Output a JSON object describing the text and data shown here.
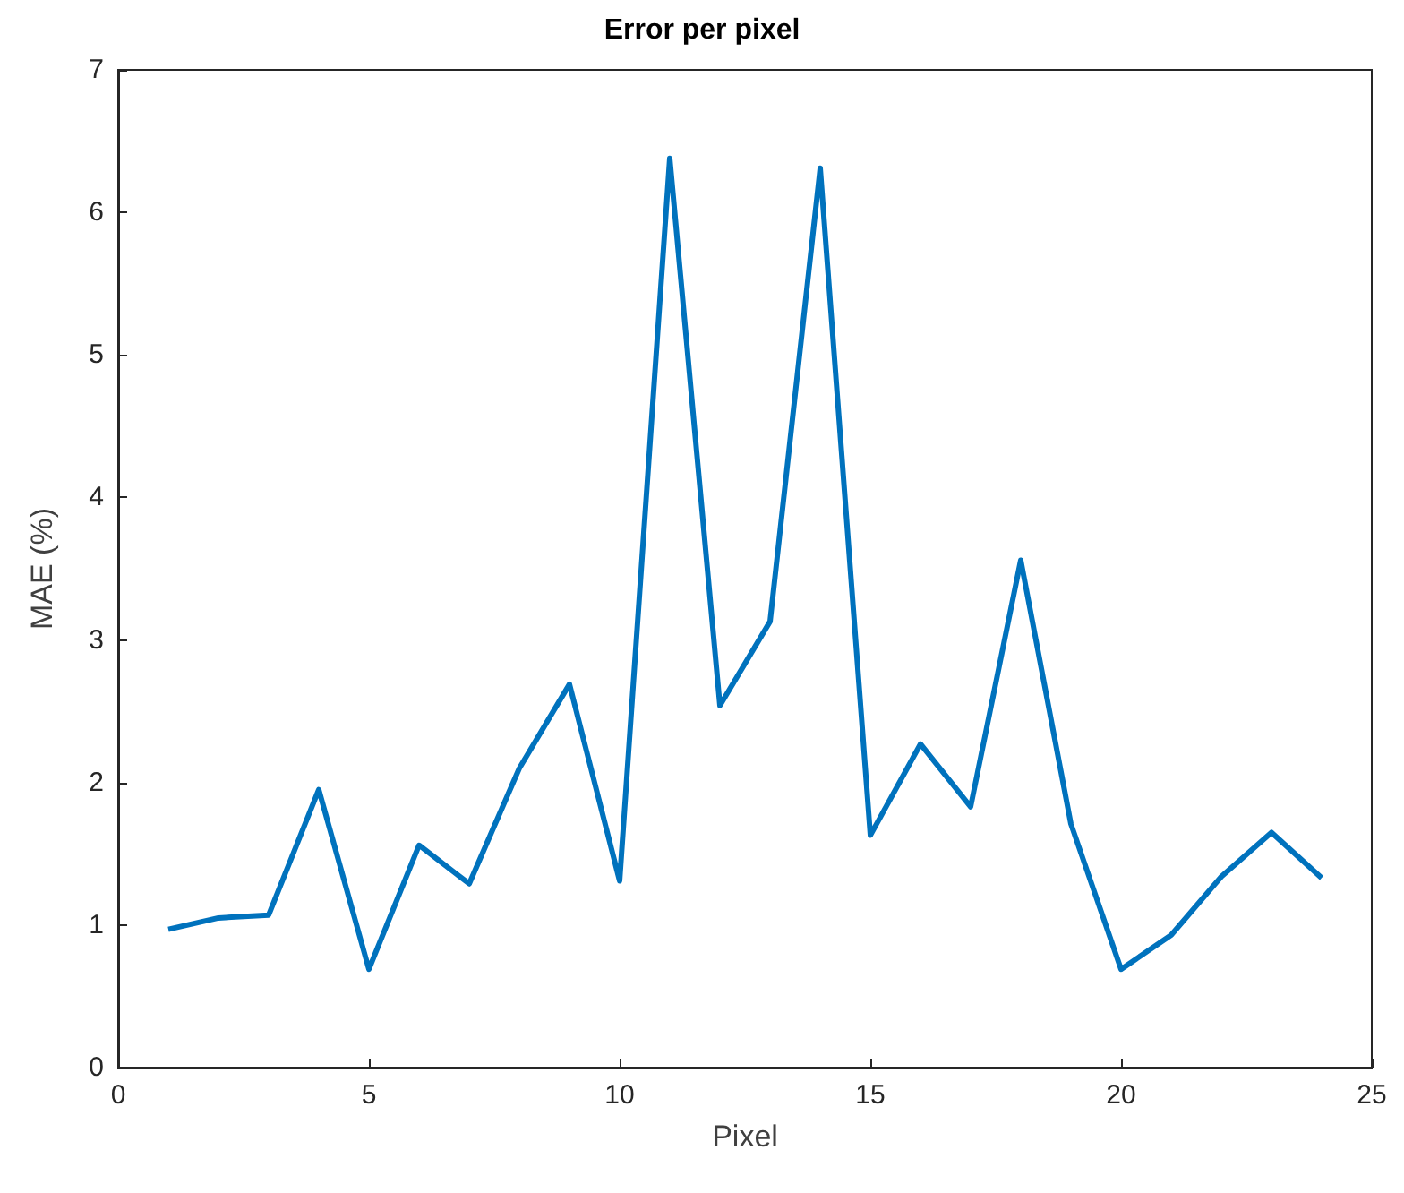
{
  "chart_data": {
    "type": "line",
    "title": "Error per pixel",
    "xlabel": "Pixel",
    "ylabel": "MAE (%)",
    "x": [
      1,
      2,
      3,
      4,
      5,
      6,
      7,
      8,
      9,
      10,
      11,
      12,
      13,
      14,
      15,
      16,
      17,
      18,
      19,
      20,
      21,
      22,
      23,
      24
    ],
    "series": [
      {
        "color": "#0072bd",
        "values": [
          0.97,
          1.05,
          1.07,
          1.95,
          0.69,
          1.56,
          1.29,
          2.1,
          2.69,
          1.31,
          6.38,
          2.54,
          3.13,
          6.31,
          1.63,
          2.27,
          1.83,
          3.56,
          1.71,
          0.69,
          0.93,
          1.34,
          1.65,
          1.33
        ]
      }
    ],
    "xlim": [
      0,
      25
    ],
    "xticks": [
      0,
      5,
      10,
      15,
      20,
      25
    ],
    "ylim": [
      0,
      7
    ],
    "yticks": [
      0,
      1,
      2,
      3,
      4,
      5,
      6,
      7
    ],
    "grid": false,
    "marker": "none",
    "line_style": "solid"
  }
}
